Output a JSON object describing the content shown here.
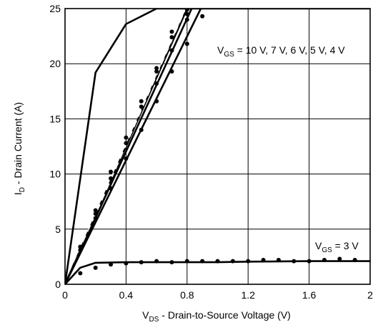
{
  "chart_data": {
    "type": "line",
    "xlabel_main": "V",
    "xlabel_sub": "DS",
    "xlabel_rest": " - Drain-to-Source Voltage (V)",
    "ylabel_main": "I",
    "ylabel_sub": "D",
    "ylabel_rest": " - Drain Current (A)",
    "xlim": [
      0,
      2
    ],
    "ylim": [
      0,
      25
    ],
    "x_ticks": [
      0,
      0.4,
      0.8,
      1.2,
      1.6,
      2
    ],
    "x_tick_labels": [
      "0",
      "0.4",
      "0.8",
      "1.2",
      "1.6",
      "2"
    ],
    "y_ticks": [
      0,
      5,
      10,
      15,
      20,
      25
    ],
    "y_tick_labels": [
      "0",
      "5",
      "10",
      "15",
      "20",
      "25"
    ],
    "grid": true,
    "annotations": [
      {
        "main": "V",
        "sub": "GS",
        "rest": " = 10 V, 7 V, 6 V, 5 V, 4 V"
      },
      {
        "main": "V",
        "sub": "GS",
        "rest": " = 3 V"
      }
    ],
    "series": [
      {
        "style": "solid",
        "x": [
          0,
          0.8
        ],
        "y": [
          0,
          25
        ]
      },
      {
        "style": "dashed",
        "x": [
          0,
          0.79
        ],
        "y": [
          0,
          25
        ]
      },
      {
        "style": "solid",
        "x": [
          0,
          0.83
        ],
        "y": [
          0,
          25
        ]
      },
      {
        "style": "solid",
        "x": [
          0,
          0.89
        ],
        "y": [
          0,
          25
        ]
      },
      {
        "style": "solid",
        "x": [
          0,
          0.2,
          0.4,
          0.6,
          0.8,
          1.2,
          1.6,
          2.0,
          2.1
        ],
        "y": [
          0,
          19.2,
          23.6,
          25,
          25,
          25,
          25,
          25,
          25
        ]
      },
      {
        "style": "solid",
        "x": [
          0,
          0.1,
          0.2,
          0.4,
          0.6,
          0.8,
          1.0,
          1.2,
          1.6,
          2.0
        ],
        "y": [
          0,
          1.5,
          1.95,
          2.0,
          2.0,
          2.0,
          2.0,
          2.05,
          2.1,
          2.1
        ]
      }
    ],
    "points": [
      {
        "x": 0.1,
        "y": 3.4
      },
      {
        "x": 0.2,
        "y": 6.7
      },
      {
        "x": 0.3,
        "y": 10.2
      },
      {
        "x": 0.4,
        "y": 13.3
      },
      {
        "x": 0.5,
        "y": 16.6
      },
      {
        "x": 0.6,
        "y": 19.6
      },
      {
        "x": 0.7,
        "y": 22.9
      },
      {
        "x": 0.8,
        "y": 24.9
      },
      {
        "x": 0.1,
        "y": 3.1
      },
      {
        "x": 0.2,
        "y": 6.4
      },
      {
        "x": 0.3,
        "y": 9.6
      },
      {
        "x": 0.4,
        "y": 12.8
      },
      {
        "x": 0.5,
        "y": 16.1
      },
      {
        "x": 0.6,
        "y": 19.3
      },
      {
        "x": 0.7,
        "y": 22.4
      },
      {
        "x": 0.8,
        "y": 24.5
      },
      {
        "x": 0.2,
        "y": 6.0
      },
      {
        "x": 0.3,
        "y": 8.7
      },
      {
        "x": 0.4,
        "y": 11.4
      },
      {
        "x": 0.5,
        "y": 14.0
      },
      {
        "x": 0.6,
        "y": 16.6
      },
      {
        "x": 0.6,
        "y": 18.2
      },
      {
        "x": 0.7,
        "y": 19.3
      },
      {
        "x": 0.7,
        "y": 21.2
      },
      {
        "x": 0.8,
        "y": 21.8
      },
      {
        "x": 0.8,
        "y": 24.0
      },
      {
        "x": 0.9,
        "y": 24.3
      },
      {
        "x": 0.1,
        "y": 1.0
      },
      {
        "x": 0.2,
        "y": 1.5
      },
      {
        "x": 0.3,
        "y": 1.8
      },
      {
        "x": 0.4,
        "y": 1.9
      },
      {
        "x": 0.5,
        "y": 2.0
      },
      {
        "x": 0.6,
        "y": 2.1
      },
      {
        "x": 0.7,
        "y": 2.0
      },
      {
        "x": 0.8,
        "y": 2.1
      },
      {
        "x": 0.9,
        "y": 2.1
      },
      {
        "x": 1.0,
        "y": 2.1
      },
      {
        "x": 1.1,
        "y": 2.1
      },
      {
        "x": 1.2,
        "y": 2.1
      },
      {
        "x": 1.3,
        "y": 2.2
      },
      {
        "x": 1.4,
        "y": 2.2
      },
      {
        "x": 1.5,
        "y": 2.1
      },
      {
        "x": 1.6,
        "y": 2.1
      },
      {
        "x": 1.7,
        "y": 2.2
      },
      {
        "x": 1.8,
        "y": 2.3
      },
      {
        "x": 1.9,
        "y": 2.2
      }
    ]
  }
}
